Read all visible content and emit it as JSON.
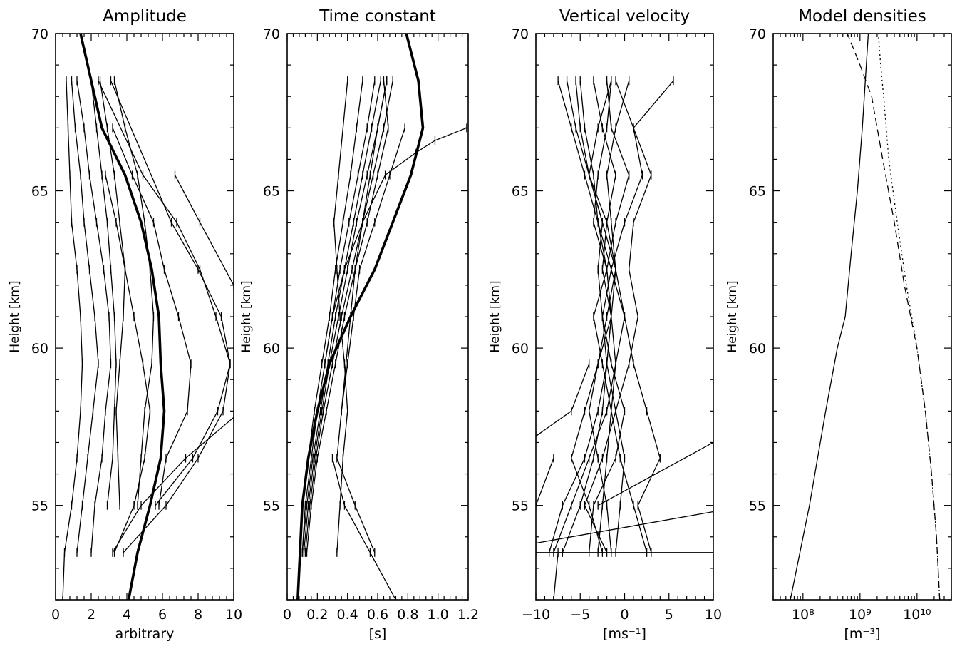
{
  "chart_data": [
    {
      "type": "line",
      "title": "Amplitude",
      "xlabel": "arbitrary",
      "ylabel": "Height [km]",
      "xlim": [
        0,
        10
      ],
      "ylim": [
        52,
        70
      ],
      "x_ticks": [
        "0",
        "2",
        "4",
        "6",
        "8",
        "10"
      ],
      "y_ticks": [
        "55",
        "60",
        "65",
        "70"
      ],
      "mean_profile": {
        "x": [
          4.1,
          4.6,
          5.3,
          5.9,
          6.1,
          5.9,
          5.8,
          5.4,
          4.8,
          3.9,
          2.6,
          1.4
        ],
        "y": [
          52,
          53.5,
          55,
          56.5,
          58,
          59.5,
          61,
          62.5,
          64,
          65.5,
          67,
          70
        ]
      },
      "profiles": [
        {
          "x": [
            0.4,
            0.5,
            0.9,
            1.2,
            1.4,
            1.5,
            1.4,
            1.2,
            0.9,
            0.8,
            0.7,
            0.6
          ],
          "y": [
            52,
            53.5,
            55,
            56.5,
            58,
            59.5,
            61,
            62.5,
            64,
            65.5,
            67,
            68.5
          ]
        },
        {
          "x": [
            1.2,
            1.5,
            1.8,
            2.1,
            2.4,
            2.2,
            1.9,
            1.6,
            1.4,
            1.1,
            0.9
          ],
          "y": [
            53.5,
            55,
            56.5,
            58,
            59.5,
            61,
            62.5,
            64,
            65.5,
            67,
            68.5
          ]
        },
        {
          "x": [
            2.0,
            2.2,
            2.6,
            2.8,
            3.1,
            3.0,
            2.7,
            2.3,
            1.9,
            1.6,
            1.2
          ],
          "y": [
            53.5,
            55,
            56.5,
            58,
            59.5,
            61,
            62.5,
            64,
            65.5,
            67,
            68.5
          ]
        },
        {
          "x": [
            2.9,
            3.2,
            3.3,
            3.4,
            3.3,
            3.1,
            2.9,
            2.6,
            2.3,
            2.0
          ],
          "y": [
            55,
            56.5,
            58,
            59.5,
            61,
            62.5,
            64,
            65.5,
            67,
            68.5
          ]
        },
        {
          "x": [
            3.6,
            3.5,
            3.4,
            3.6,
            3.8,
            3.9,
            3.6,
            3.3,
            2.9,
            2.5
          ],
          "y": [
            55,
            56.5,
            58,
            59.5,
            61,
            62.5,
            64,
            65.5,
            67,
            68.5
          ]
        },
        {
          "x": [
            4.6,
            4.8,
            5.0,
            5.4,
            5.5,
            5.3,
            5.0,
            4.6,
            3.9,
            3.3
          ],
          "y": [
            55,
            56.5,
            58,
            59.5,
            61,
            62.5,
            64,
            65.5,
            67,
            68.5
          ]
        },
        {
          "x": [
            3.3,
            4.4,
            5.0,
            5.3,
            4.9,
            4.4,
            3.9,
            3.4,
            2.8
          ],
          "y": [
            53.5,
            55,
            56.5,
            58,
            59.5,
            61,
            62.5,
            64,
            65.5
          ]
        },
        {
          "x": [
            5.8,
            6.2,
            7.4,
            7.6,
            6.9,
            6.1,
            5.5,
            4.3,
            3.2
          ],
          "y": [
            55,
            56.5,
            58,
            59.5,
            61,
            62.5,
            64,
            65.5,
            67
          ]
        },
        {
          "x": [
            5.6,
            7.7,
            9.1,
            9.8,
            9.0,
            8.1,
            6.8,
            4.9,
            2.4
          ],
          "y": [
            55,
            56.5,
            58,
            59.5,
            61,
            62.5,
            64,
            65.5,
            68.5
          ]
        },
        {
          "x": [
            3.8,
            6.2,
            8.0,
            9.4,
            9.8,
            9.3,
            8.0,
            6.5,
            3.1
          ],
          "y": [
            53.5,
            55,
            56.5,
            58,
            59.5,
            61,
            62.5,
            64,
            68.5
          ]
        },
        {
          "x": [
            10.0,
            8.1,
            6.7
          ],
          "y": [
            62.0,
            64,
            65.5
          ]
        },
        {
          "x": [
            10.0,
            7.3,
            4.8,
            3.2
          ],
          "y": [
            57.8,
            56.5,
            55,
            53.5
          ]
        }
      ]
    },
    {
      "type": "line",
      "title": "Time constant",
      "xlabel": "[s]",
      "ylabel": "Height [km]",
      "xlim": [
        0,
        1.2
      ],
      "ylim": [
        52,
        70
      ],
      "x_ticks": [
        "0",
        "0.2",
        "0.4",
        "0.6",
        "0.8",
        "1.0",
        "1.2"
      ],
      "y_ticks": [
        "55",
        "60",
        "65",
        "70"
      ],
      "mean_profile": {
        "x": [
          0.07,
          0.1,
          0.14,
          0.2,
          0.28,
          0.42,
          0.58,
          0.82,
          0.9,
          0.87,
          0.79
        ],
        "y": [
          52,
          55,
          56.5,
          58,
          59.5,
          61,
          62.5,
          65.5,
          67,
          68.5,
          70
        ]
      },
      "profiles": [
        {
          "x": [
            0.09,
            0.1,
            0.14,
            0.18,
            0.23,
            0.28,
            0.32,
            0.37,
            0.42,
            0.46,
            0.5
          ],
          "y": [
            53.5,
            55,
            56.5,
            58,
            59.5,
            61,
            62.5,
            64,
            65.5,
            67,
            68.5
          ]
        },
        {
          "x": [
            0.1,
            0.12,
            0.16,
            0.2,
            0.25,
            0.3,
            0.35,
            0.41,
            0.47,
            0.53,
            0.58
          ],
          "y": [
            53.5,
            55,
            56.5,
            58,
            59.5,
            61,
            62.5,
            64,
            65.5,
            67,
            68.5
          ]
        },
        {
          "x": [
            0.1,
            0.13,
            0.17,
            0.22,
            0.27,
            0.32,
            0.38,
            0.44,
            0.5,
            0.56,
            0.62
          ],
          "y": [
            53.5,
            55,
            56.5,
            58,
            59.5,
            61,
            62.5,
            64,
            65.5,
            67,
            68.5
          ]
        },
        {
          "x": [
            0.11,
            0.14,
            0.18,
            0.23,
            0.28,
            0.34,
            0.4,
            0.46,
            0.53,
            0.6,
            0.66
          ],
          "y": [
            53.5,
            55,
            56.5,
            58,
            59.5,
            61,
            62.5,
            64,
            65.5,
            67,
            68.5
          ]
        },
        {
          "x": [
            0.12,
            0.15,
            0.19,
            0.24,
            0.3,
            0.36,
            0.43,
            0.5,
            0.57,
            0.64,
            0.7
          ],
          "y": [
            53.5,
            55,
            56.5,
            58,
            59.5,
            61,
            62.5,
            64,
            65.5,
            67,
            68.5
          ]
        },
        {
          "x": [
            0.13,
            0.16,
            0.2,
            0.26,
            0.32,
            0.38,
            0.45,
            0.53,
            0.6,
            0.67,
            0.64
          ],
          "y": [
            53.5,
            55,
            56.5,
            58,
            59.5,
            61,
            62.5,
            64,
            65.5,
            67,
            68.5
          ]
        },
        {
          "x": [
            0.33,
            0.35,
            0.37,
            0.4,
            0.38,
            0.35,
            0.33,
            0.31,
            0.34,
            0.4
          ],
          "y": [
            53.5,
            55,
            56.5,
            58,
            59.5,
            61,
            62.5,
            64,
            65.5,
            68.5
          ]
        },
        {
          "x": [
            0.58,
            0.45,
            0.33,
            0.36,
            0.4,
            0.44,
            0.48,
            0.58,
            0.68,
            0.78
          ],
          "y": [
            53.5,
            55,
            56.5,
            58,
            59.5,
            61,
            62.5,
            64,
            65.5,
            67
          ]
        },
        {
          "x": [
            0.25,
            0.3,
            0.38,
            0.5,
            0.65,
            0.85,
            0.98,
            1.19
          ],
          "y": [
            59.5,
            61,
            62.5,
            64,
            65.5,
            66.2,
            66.6,
            67
          ]
        },
        {
          "x": [
            0.72,
            0.55,
            0.38,
            0.3
          ],
          "y": [
            52,
            53.5,
            55,
            56.5
          ]
        },
        {
          "x": [
            0.36,
            0.39,
            0.42,
            0.45,
            0.5,
            0.55,
            0.6,
            0.66
          ],
          "y": [
            58,
            59.5,
            61,
            62.5,
            64,
            65.5,
            67,
            68.5
          ]
        }
      ]
    },
    {
      "type": "line",
      "title": "Vertical velocity",
      "xlabel": "[ms⁻¹]",
      "ylabel": "Height [km]",
      "xlim": [
        -10,
        10
      ],
      "ylim": [
        52,
        70
      ],
      "x_ticks": [
        "−10",
        "−5",
        "0",
        "5",
        "10"
      ],
      "y_ticks": [
        "55",
        "60",
        "65",
        "70"
      ],
      "profiles": [
        {
          "x": [
            -8.5,
            -7.0,
            -4.5,
            -3.0,
            -2.0,
            -2.5,
            -3.0,
            -2.5,
            -4.0,
            -5.5,
            -6.5
          ],
          "y": [
            53.5,
            55,
            56.5,
            58,
            59.5,
            61,
            62.5,
            64,
            65.5,
            67,
            68.5
          ]
        },
        {
          "x": [
            -7.0,
            -5.0,
            -3.5,
            -2.5,
            -2.0,
            -1.5,
            -2.0,
            -3.0,
            -3.5,
            -4.5,
            -5.0
          ],
          "y": [
            53.5,
            55,
            56.5,
            58,
            59.5,
            61,
            62.5,
            64,
            65.5,
            67,
            68.5
          ]
        },
        {
          "x": [
            -3.0,
            -2.5,
            -2.0,
            -1.5,
            -1.0,
            -1.5,
            -2.5,
            -2.0,
            -1.0,
            -2.5,
            -3.5
          ],
          "y": [
            53.5,
            55,
            56.5,
            58,
            59.5,
            61,
            62.5,
            64,
            65.5,
            67,
            68.5
          ]
        },
        {
          "x": [
            2.5,
            1.0,
            -0.5,
            -1.5,
            -2.5,
            -3.5,
            -2.0,
            -1.0,
            0.5,
            -1.5,
            -2.0
          ],
          "y": [
            53.5,
            55,
            56.5,
            58,
            59.5,
            61,
            62.5,
            64,
            65.5,
            67,
            68.5
          ]
        },
        {
          "x": [
            -1.5,
            -2.0,
            -3.0,
            -4.0,
            -3.0,
            -2.0,
            -1.0,
            -2.5,
            -4.0,
            -3.0,
            -1.5
          ],
          "y": [
            53.5,
            55,
            56.5,
            58,
            59.5,
            61,
            62.5,
            64,
            65.5,
            67,
            68.5
          ]
        },
        {
          "x": [
            -4.0,
            -3.5,
            -1.0,
            0.0,
            -1.5,
            -2.5,
            -1.5,
            0.0,
            2.0,
            1.0,
            -1.0
          ],
          "y": [
            53.5,
            55,
            56.5,
            58,
            59.5,
            61,
            62.5,
            64,
            65.5,
            67,
            68.5
          ]
        },
        {
          "x": [
            -2.5,
            -4.0,
            -6.0,
            -4.5,
            -3.0,
            -1.5,
            -1.0,
            -1.5,
            -2.0,
            -1.0,
            0.5
          ],
          "y": [
            53.5,
            55,
            56.5,
            58,
            59.5,
            61,
            62.5,
            64,
            65.5,
            67,
            68.5
          ]
        },
        {
          "x": [
            -1.0,
            -0.5,
            0.0,
            -1.0,
            -2.0,
            -1.5,
            -2.0,
            -3.5,
            -3.0,
            -2.0,
            -1.5
          ],
          "y": [
            53.5,
            55,
            56.5,
            58,
            59.5,
            61,
            62.5,
            64,
            65.5,
            67,
            68.5
          ]
        },
        {
          "x": [
            3.0,
            1.5,
            4.0,
            2.5,
            1.0,
            0.0,
            -1.0,
            -2.0,
            -4.0,
            -5.0,
            -5.5
          ],
          "y": [
            53.5,
            55,
            56.5,
            58,
            59.5,
            61,
            62.5,
            64,
            65.5,
            67,
            68.5
          ]
        },
        {
          "x": [
            -8.0,
            -6.0,
            -4.0,
            -2.0,
            -1.0,
            0.0,
            -1.5,
            -3.0,
            -4.5,
            -6.0,
            -7.5
          ],
          "y": [
            53.5,
            55,
            56.5,
            58,
            59.5,
            61,
            62.5,
            64,
            65.5,
            67,
            68.5
          ]
        },
        {
          "x": [
            -2.0,
            -4.5,
            -2.5,
            -1.0,
            0.5,
            1.5,
            0.5,
            1.0,
            3.0,
            1.0,
            5.5
          ],
          "y": [
            53.5,
            55,
            56.5,
            58,
            59.5,
            61,
            62.5,
            64,
            65.5,
            67,
            68.5
          ]
        },
        {
          "x": [
            -10.0,
            10.0
          ],
          "y": [
            53.8,
            54.8
          ]
        },
        {
          "x": [
            10.0,
            -3.0
          ],
          "y": [
            57.0,
            55.0
          ]
        },
        {
          "x": [
            -10.0,
            -6.0,
            -4.0
          ],
          "y": [
            57.2,
            58.0,
            59.5
          ]
        },
        {
          "x": [
            -10.0,
            -8.0
          ],
          "y": [
            55.0,
            56.5
          ]
        },
        {
          "x": [
            -8.0,
            -7.5
          ],
          "y": [
            52.0,
            53.5
          ]
        },
        {
          "x": [
            -10.0,
            10.0
          ],
          "y": [
            53.5,
            53.5
          ]
        }
      ]
    },
    {
      "type": "line",
      "title": "Model densities",
      "xlabel": "[m⁻³]",
      "ylabel": "Height [km]",
      "x_scale": "log",
      "xlim": [
        30000000.0,
        40000000000.0
      ],
      "ylim": [
        52,
        70
      ],
      "x_ticks": [
        "10⁸",
        "10⁹",
        "10¹⁰"
      ],
      "y_ticks": [
        "55",
        "60",
        "65",
        "70"
      ],
      "series": [
        {
          "style": "solid",
          "x": [
            60000000.0,
            130000000.0,
            250000000.0,
            400000000.0,
            550000000.0,
            700000000.0,
            900000000.0,
            1100000000.0,
            1400000000.0
          ],
          "y": [
            52,
            55,
            58,
            60,
            61,
            63,
            65,
            67,
            70
          ]
        },
        {
          "style": "dashed",
          "x": [
            25000000000.0,
            22000000000.0,
            18000000000.0,
            14000000000.0,
            10000000000.0,
            6000000000.0,
            4000000000.0,
            2500000000.0,
            1600000000.0,
            1000000000.0,
            600000000.0
          ],
          "y": [
            52,
            54,
            56,
            58,
            60,
            62,
            64,
            66,
            68,
            69,
            70
          ]
        },
        {
          "style": "dotted",
          "x": [
            25000000000.0,
            22000000000.0,
            18000000000.0,
            14000000000.0,
            10000000000.0,
            6500000000.0,
            4500000000.0,
            3200000000.0,
            2600000000.0,
            2300000000.0,
            2100000000.0
          ],
          "y": [
            52,
            54,
            56,
            58,
            60,
            62,
            64,
            66,
            68,
            69,
            70
          ]
        }
      ]
    }
  ]
}
